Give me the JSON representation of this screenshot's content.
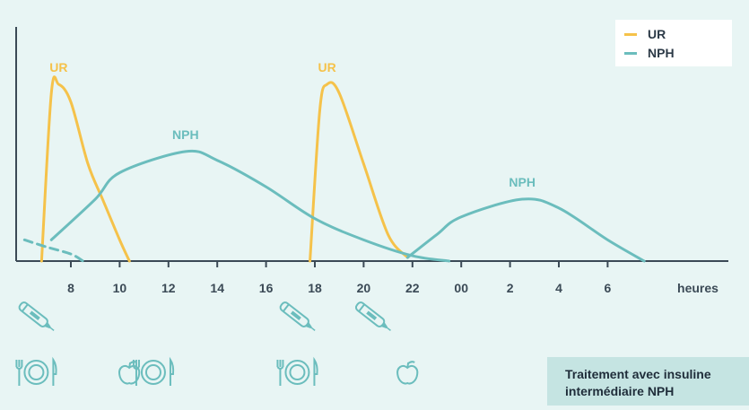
{
  "chart_data": {
    "type": "line",
    "xlabel": "heures",
    "x_ticks": [
      "8",
      "10",
      "12",
      "14",
      "16",
      "18",
      "20",
      "22",
      "00",
      "2",
      "4",
      "6"
    ],
    "series": [
      {
        "name": "UR",
        "color": "#f5c24a",
        "curves": [
          {
            "label": "UR",
            "points": [
              [
                6.8,
                0
              ],
              [
                7.2,
                0.95
              ],
              [
                7.5,
                1.0
              ],
              [
                8,
                0.9
              ],
              [
                8.7,
                0.55
              ],
              [
                9.3,
                0.35
              ],
              [
                10,
                0.12
              ],
              [
                10.4,
                0
              ]
            ]
          },
          {
            "label": "UR",
            "points": [
              [
                17.8,
                0
              ],
              [
                18.2,
                0.85
              ],
              [
                18.5,
                1.0
              ],
              [
                19,
                0.95
              ],
              [
                20,
                0.55
              ],
              [
                21,
                0.15
              ],
              [
                21.8,
                0.02
              ]
            ]
          }
        ]
      },
      {
        "name": "NPH",
        "color": "#6bbdbd",
        "curves": [
          {
            "label": "NPH",
            "points": [
              [
                7.2,
                0.12
              ],
              [
                9,
                0.35
              ],
              [
                10,
                0.5
              ],
              [
                12.7,
                0.62
              ],
              [
                14,
                0.57
              ],
              [
                16,
                0.42
              ],
              [
                18,
                0.24
              ],
              [
                20,
                0.12
              ],
              [
                22,
                0.03
              ],
              [
                23.5,
                0
              ]
            ]
          },
          {
            "label": "NPH",
            "points": [
              [
                21.8,
                0.02
              ],
              [
                23,
                0.15
              ],
              [
                24,
                0.25
              ],
              [
                26.5,
                0.35
              ],
              [
                28,
                0.3
              ],
              [
                30,
                0.12
              ],
              [
                31.5,
                0
              ]
            ]
          },
          {
            "label": "",
            "points": [
              [
                6.1,
                0.12
              ],
              [
                7,
                0.08
              ],
              [
                8,
                0.04
              ],
              [
                8.5,
                0
              ]
            ]
          }
        ]
      }
    ],
    "legend": {
      "position": "top-right",
      "items": [
        {
          "label": "UR",
          "color": "#f5c24a"
        },
        {
          "label": "NPH",
          "color": "#6bbdbd"
        }
      ]
    },
    "grid": false
  },
  "icons": [
    {
      "name": "insulin-pen-icon",
      "x": 7.5
    },
    {
      "name": "meal-plate-icon",
      "x": 7.5
    },
    {
      "name": "apple-icon",
      "x": 10.1
    },
    {
      "name": "meal-plate-icon",
      "x": 12.3
    },
    {
      "name": "insulin-pen-icon",
      "x": 18.2
    },
    {
      "name": "meal-plate-icon",
      "x": 18.2
    },
    {
      "name": "insulin-pen-icon",
      "x": 21.3
    },
    {
      "name": "apple-icon",
      "x": 21.5
    }
  ],
  "caption": {
    "line1": "Traitement avec insuline",
    "line2": "intermédiaire NPH"
  },
  "colors": {
    "axis": "#3b4a56",
    "background": "#e8f5f4",
    "icon": "#6bbdbd"
  }
}
